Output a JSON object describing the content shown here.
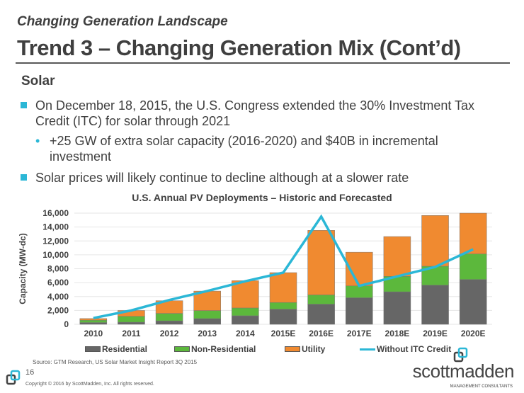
{
  "kicker": "Changing Generation Landscape",
  "title": "Trend 3 – Changing Generation Mix (Cont’d)",
  "section": "Solar",
  "bullets": [
    "On December 18, 2015, the U.S. Congress extended the 30% Investment Tax Credit (ITC) for solar through 2021",
    "+25 GW of extra solar capacity (2016-2020) and $40B in incremental investment",
    "Solar prices will likely continue to decline although at a slower rate"
  ],
  "sub_bullet_marker": "•",
  "chart_data": {
    "type": "bar",
    "stacked": true,
    "title": "U.S. Annual PV Deployments – Historic and Forecasted",
    "ylabel": "Capacity (MW-dc)",
    "ylim": [
      0,
      16000
    ],
    "yticks": [
      "0",
      "2,000",
      "4,000",
      "6,000",
      "8,000",
      "10,000",
      "12,000",
      "14,000",
      "16,000"
    ],
    "grid": true,
    "legend": "bottom",
    "categories": [
      "2010",
      "2011",
      "2012",
      "2013",
      "2014",
      "2015E",
      "2016E",
      "2017E",
      "2018E",
      "2019E",
      "2020E"
    ],
    "series": [
      {
        "name": "Residential",
        "type": "bar",
        "color": "#666666",
        "values": [
          250,
          300,
          500,
          820,
          1230,
          2180,
          2900,
          3820,
          4680,
          5630,
          6450
        ]
      },
      {
        "name": "Non-Residential",
        "type": "bar",
        "color": "#5cb83c",
        "values": [
          350,
          850,
          1070,
          1160,
          1120,
          960,
          1330,
          1710,
          2220,
          2730,
          3680
        ]
      },
      {
        "name": "Utility",
        "type": "bar",
        "color": "#f08a30",
        "values": [
          230,
          840,
          1830,
          2800,
          3930,
          4300,
          9290,
          4850,
          5730,
          7310,
          5870
        ]
      },
      {
        "name": "Without ITC Credit",
        "type": "line",
        "color": "#2bb7d6",
        "values": [
          900,
          2000,
          3500,
          4800,
          6200,
          7440,
          15500,
          5530,
          6900,
          8260,
          10800
        ]
      }
    ]
  },
  "source": "Source:  GTM Research, US Solar Market Insight Report 3Q 2015",
  "page_number": "16",
  "copyright": "Copyright © 2016 by ScottMadden, Inc. All rights reserved.",
  "brand": "scottmadden",
  "brand_sub": "MANAGEMENT CONSULTANTS"
}
